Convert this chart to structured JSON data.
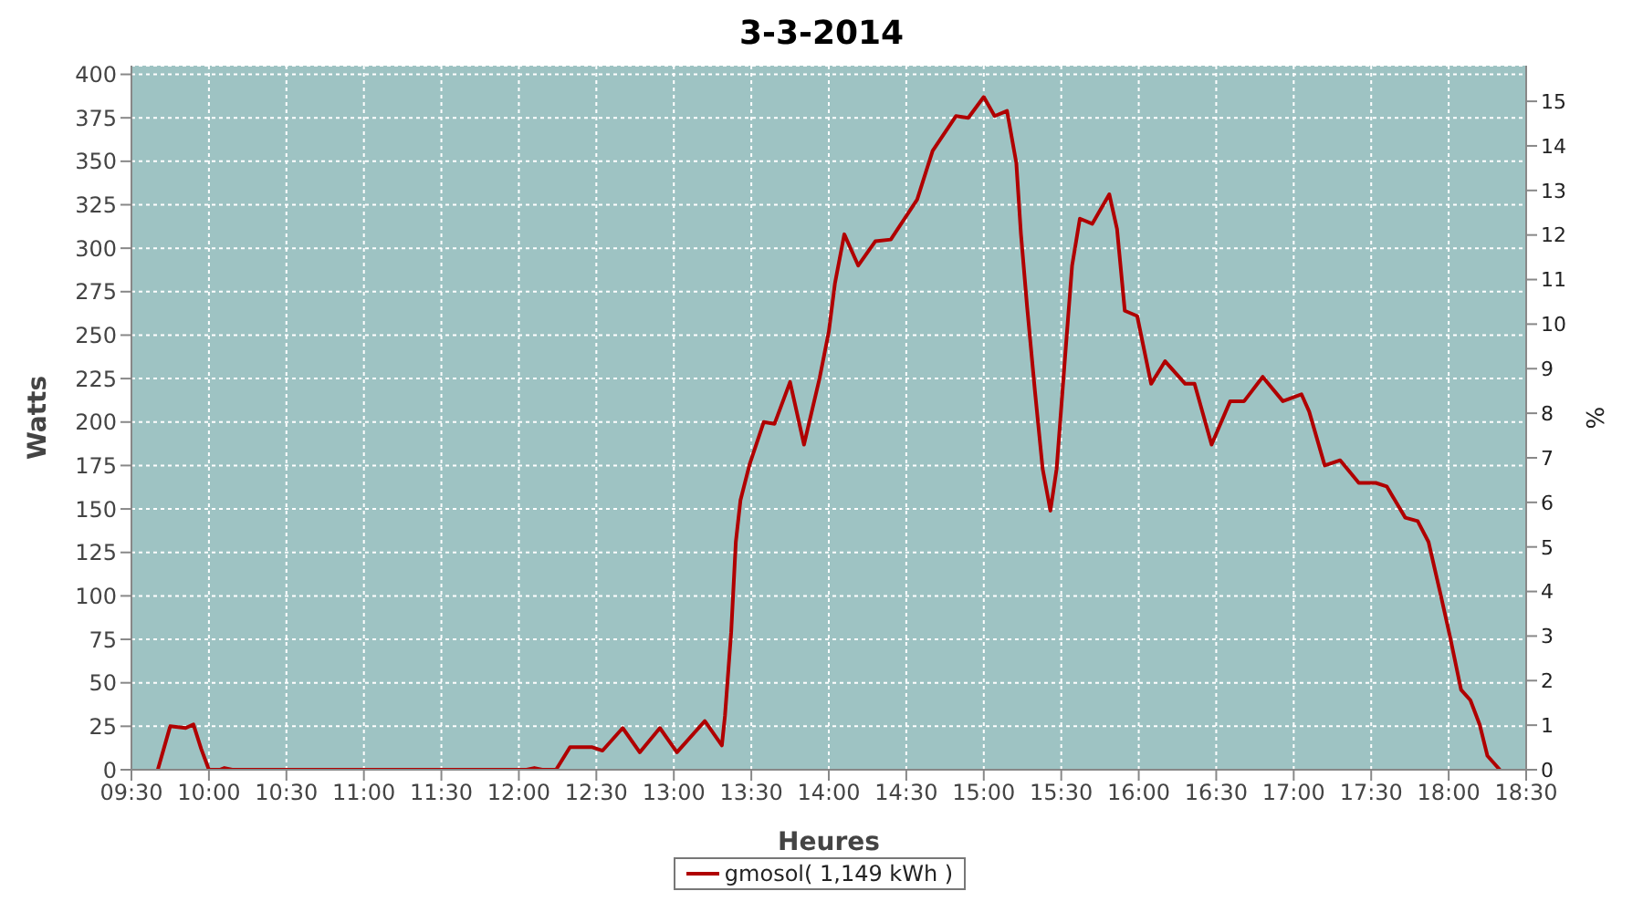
{
  "chart_data": {
    "type": "line",
    "title": "3-3-2014",
    "xlabel": "Heures",
    "ylabel": "Watts",
    "y2label": "%",
    "xlim": [
      9.5,
      18.5
    ],
    "xticks": [
      {
        "value": 9.5,
        "label": "09:30"
      },
      {
        "value": 10,
        "label": "10:00"
      },
      {
        "value": 10.5,
        "label": "10:30"
      },
      {
        "value": 11,
        "label": "11:00"
      },
      {
        "value": 11.5,
        "label": "11:30"
      },
      {
        "value": 12,
        "label": "12:00"
      },
      {
        "value": 12.5,
        "label": "12:30"
      },
      {
        "value": 13,
        "label": "13:00"
      },
      {
        "value": 13.5,
        "label": "13:30"
      },
      {
        "value": 14,
        "label": "14:00"
      },
      {
        "value": 14.5,
        "label": "14:30"
      },
      {
        "value": 15,
        "label": "15:00"
      },
      {
        "value": 15.5,
        "label": "15:30"
      },
      {
        "value": 16,
        "label": "16:00"
      },
      {
        "value": 16.5,
        "label": "16:30"
      },
      {
        "value": 17,
        "label": "17:00"
      },
      {
        "value": 17.5,
        "label": "17:30"
      },
      {
        "value": 18,
        "label": "18:00"
      },
      {
        "value": 18.5,
        "label": "18:30"
      }
    ],
    "ylim": [
      0,
      405
    ],
    "yticks": [
      0,
      25,
      50,
      75,
      100,
      125,
      150,
      175,
      200,
      225,
      250,
      275,
      300,
      325,
      350,
      375,
      400
    ],
    "y2lim": [
      0,
      15.8
    ],
    "y2ticks": [
      0,
      1,
      2,
      3,
      4,
      5,
      6,
      7,
      8,
      9,
      10,
      11,
      12,
      13,
      14,
      15
    ],
    "grid": true,
    "legend": "bottom",
    "line_style": "solid",
    "series": [
      {
        "name": "gmosol( 1,149 kWh )",
        "color": "#b00000",
        "x": [
          9.67,
          9.75,
          9.85,
          9.9,
          9.95,
          10.0,
          10.07,
          10.1,
          10.15,
          12.05,
          12.1,
          12.15,
          12.24,
          12.33,
          12.47,
          12.54,
          12.67,
          12.78,
          12.91,
          13.02,
          13.2,
          13.31,
          13.33,
          13.37,
          13.4,
          13.43,
          13.49,
          13.58,
          13.65,
          13.75,
          13.84,
          13.94,
          14.0,
          14.04,
          14.1,
          14.19,
          14.3,
          14.4,
          14.57,
          14.67,
          14.82,
          14.9,
          15.0,
          15.07,
          15.15,
          15.21,
          15.24,
          15.28,
          15.33,
          15.38,
          15.43,
          15.47,
          15.52,
          15.57,
          15.62,
          15.7,
          15.81,
          15.86,
          15.91,
          15.99,
          16.08,
          16.17,
          16.3,
          16.36,
          16.47,
          16.59,
          16.68,
          16.8,
          16.93,
          17.05,
          17.1,
          17.2,
          17.3,
          17.42,
          17.53,
          17.6,
          17.72,
          17.8,
          17.87,
          17.95,
          18.01,
          18.08,
          18.14,
          18.2,
          18.25,
          18.33
        ],
        "values": [
          0,
          25,
          24,
          26,
          12,
          0,
          0,
          1,
          0,
          0,
          1,
          0,
          0,
          13,
          13,
          11,
          24,
          10,
          24,
          10,
          28,
          14,
          31,
          79,
          131,
          155,
          176,
          200,
          199,
          223,
          187,
          225,
          252,
          280,
          308,
          290,
          304,
          305,
          328,
          356,
          376,
          375,
          387,
          376,
          379,
          349,
          308,
          266,
          218,
          173,
          149,
          173,
          232,
          290,
          317,
          314,
          331,
          311,
          264,
          261,
          222,
          235,
          222,
          222,
          187,
          212,
          212,
          226,
          212,
          216,
          206,
          175,
          178,
          165,
          165,
          163,
          145,
          143,
          131,
          100,
          76,
          46,
          40,
          26,
          8,
          0
        ]
      }
    ]
  }
}
